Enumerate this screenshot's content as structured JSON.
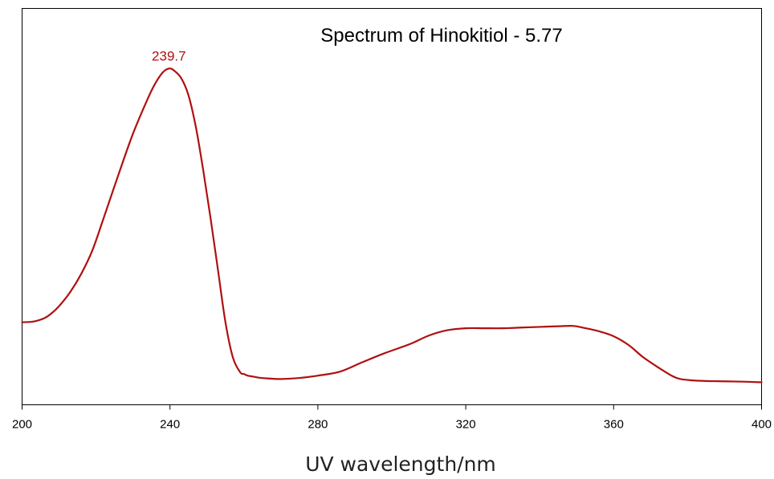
{
  "chart_data": {
    "type": "line",
    "title": "Spectrum of Hinokitiol - 5.77",
    "xlabel": "UV wavelength/nm",
    "ylabel": "",
    "xlim": [
      200,
      400
    ],
    "ylim": [
      0,
      1.0
    ],
    "x_ticks": [
      "200",
      "240",
      "280",
      "320",
      "360",
      "400"
    ],
    "grid": false,
    "line_color": "#b01010",
    "peak_label": {
      "x": 239.7,
      "text": "239.7"
    },
    "series": [
      {
        "x": [
          200,
          203,
          206,
          208,
          210,
          213,
          216,
          219,
          222,
          226,
          230,
          234,
          236,
          238,
          239.7,
          241,
          243,
          245,
          247,
          249,
          251,
          253,
          255,
          257,
          259,
          260,
          261,
          262,
          264,
          266,
          270,
          275,
          280,
          286,
          292,
          298,
          305,
          310,
          315,
          320,
          325,
          330,
          335,
          340,
          345,
          349,
          352,
          356,
          360,
          364,
          368,
          372,
          376,
          378,
          381,
          385,
          390,
          395,
          400
        ],
        "y": [
          0.18,
          0.182,
          0.192,
          0.207,
          0.228,
          0.27,
          0.325,
          0.395,
          0.49,
          0.62,
          0.745,
          0.85,
          0.895,
          0.928,
          0.94,
          0.935,
          0.912,
          0.86,
          0.765,
          0.635,
          0.49,
          0.335,
          0.18,
          0.075,
          0.03,
          0.025,
          0.02,
          0.018,
          0.014,
          0.012,
          0.01,
          0.013,
          0.02,
          0.032,
          0.06,
          0.087,
          0.115,
          0.14,
          0.156,
          0.162,
          0.162,
          0.162,
          0.164,
          0.166,
          0.168,
          0.169,
          0.163,
          0.153,
          0.138,
          0.112,
          0.075,
          0.045,
          0.018,
          0.01,
          0.006,
          0.004,
          0.003,
          0.002,
          0.0
        ]
      }
    ]
  }
}
